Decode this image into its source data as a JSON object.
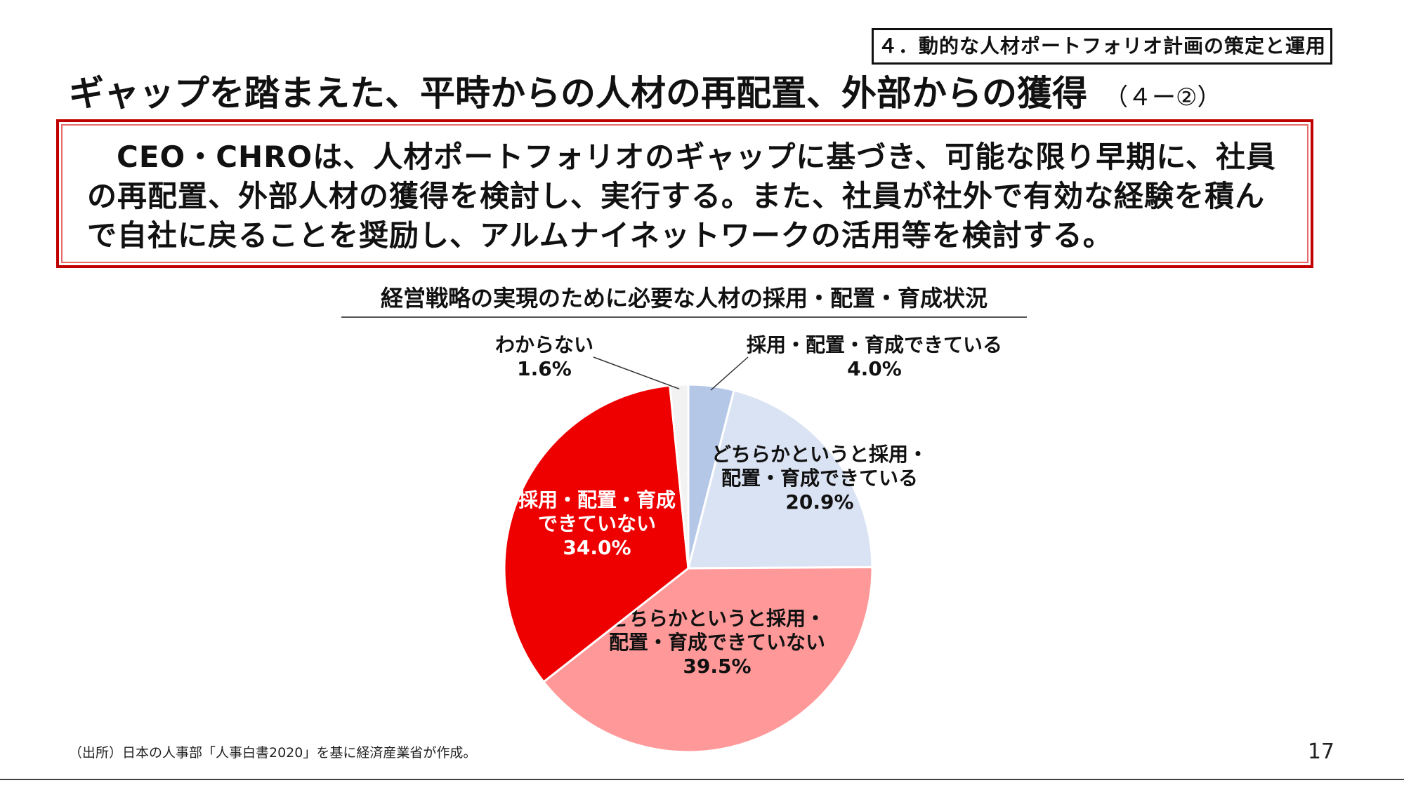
{
  "header": {
    "section_tag": "４．動的な人材ポートフォリオ計画の策定と運用",
    "title": "ギャップを踏まえた、平時からの人材の再配置、外部からの獲得",
    "title_suffix": "（４ー②）"
  },
  "message": {
    "text": "CEO・CHROは、人材ポートフォリオのギャップに基づき、可能な限り早期に、社員の再配置、外部人材の獲得を検討し、実行する。また、社員が社外で有効な経験を積んで自社に戻ることを奨励し、アルムナイネットワークの活用等を検討する。"
  },
  "chart_data": {
    "type": "pie",
    "title": "経営戦略の実現のために必要な人材の採用・配置・育成状況",
    "unit": "%",
    "slices": [
      {
        "label_lines": [
          "採用・配置・育成できている"
        ],
        "value": 4.0,
        "value_label": "4.0%",
        "color": "#b4c7e7"
      },
      {
        "label_lines": [
          "どちらかというと採用・",
          "配置・育成できている"
        ],
        "value": 20.9,
        "value_label": "20.9%",
        "color": "#dae3f3"
      },
      {
        "label_lines": [
          "どちらかというと採用・",
          "配置・育成できていない"
        ],
        "value": 39.5,
        "value_label": "39.5%",
        "color": "#ff9999"
      },
      {
        "label_lines": [
          "採用・配置・育成",
          "できていない"
        ],
        "value": 34.0,
        "value_label": "34.0%",
        "color": "#ee0000"
      },
      {
        "label_lines": [
          "わからない"
        ],
        "value": 1.6,
        "value_label": "1.6%",
        "color": "#f2f2f2"
      }
    ]
  },
  "footer": {
    "source": "（出所）日本の人事部「人事白書2020」を基に経済産業省が作成。",
    "page_number": "17"
  }
}
